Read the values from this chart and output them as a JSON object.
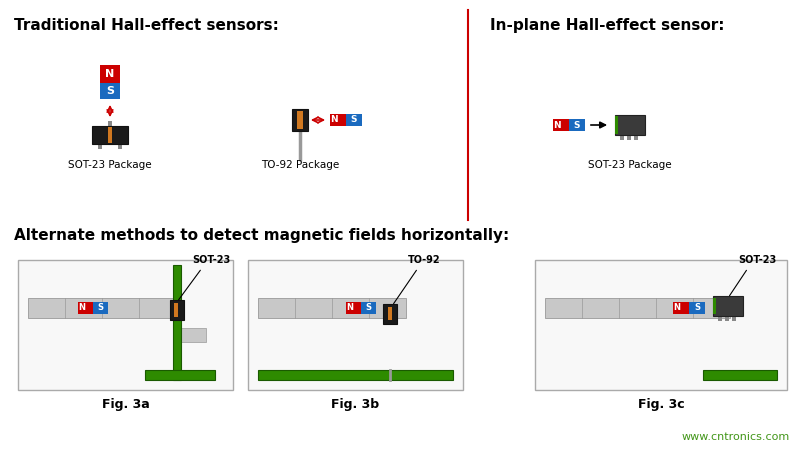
{
  "title_traditional": "Traditional Hall-effect sensors:",
  "title_inplane": "In-plane Hall-effect sensor:",
  "title_alternate": "Alternate methods to detect magnetic fields horizontally:",
  "label_sot23_pkg": "SOT-23 Package",
  "label_to92_pkg": "TO-92 Package",
  "label_fig3a": "Fig. 3a",
  "label_fig3b": "Fig. 3b",
  "label_fig3c": "Fig. 3c",
  "label_sot23": "SOT-23",
  "label_to92": "TO-92",
  "watermark": "www.cntronics.com",
  "bg_color": "#ffffff",
  "red_color": "#cc0000",
  "blue_color": "#1a6abf",
  "green_color": "#2e8b00",
  "sensor_dark": "#2a2a2a",
  "divider_color": "#cc0000",
  "pcb_gray": "#c8c8c8",
  "box_border": "#aaaaaa"
}
